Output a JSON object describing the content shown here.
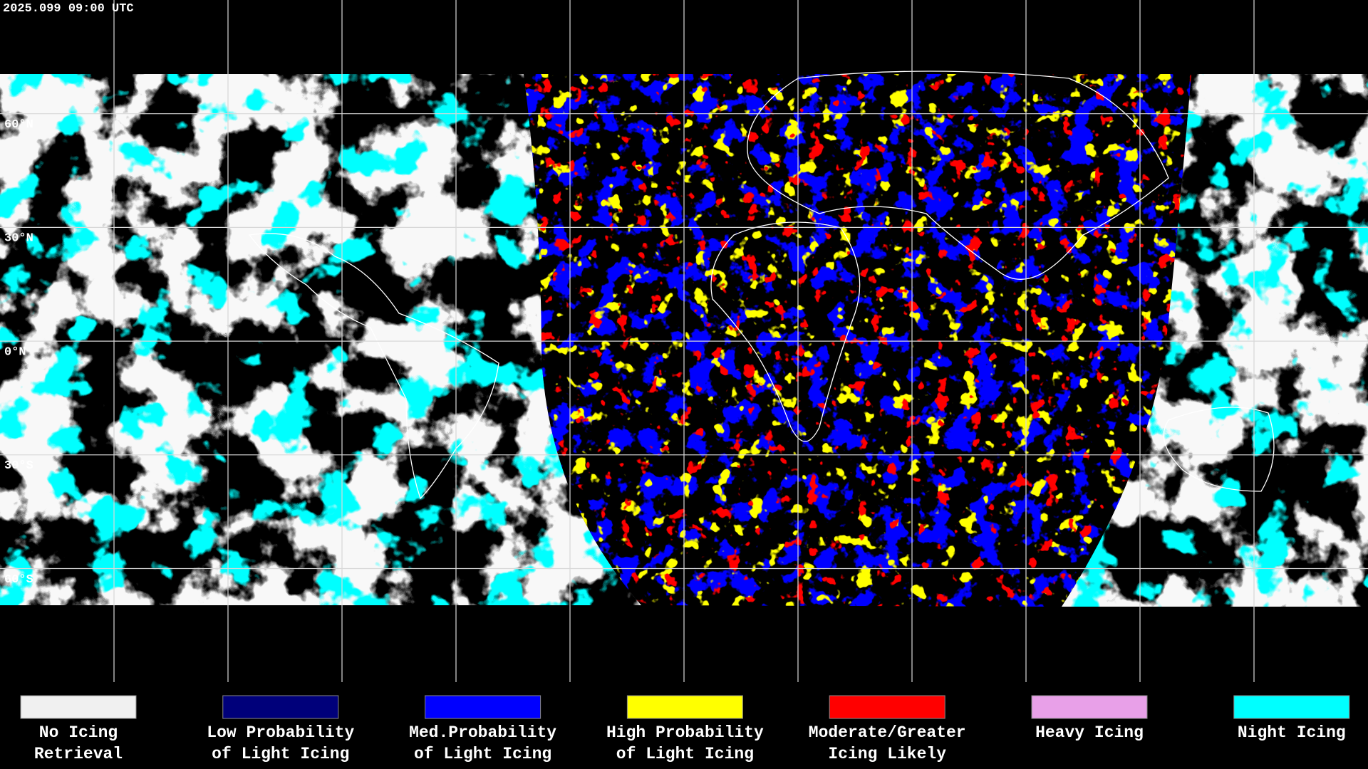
{
  "header": {
    "timestamp": "2025.099 09:00 UTC"
  },
  "latitude_labels": [
    "60°N",
    "30°N",
    "0°N",
    "30°S",
    "60°S"
  ],
  "legend": [
    {
      "lines": [
        "No Icing",
        "Retrieval"
      ],
      "color": "#f0f0f0"
    },
    {
      "lines": [
        "Low Probability",
        "of Light Icing"
      ],
      "color": "#00007a"
    },
    {
      "lines": [
        "Med.Probability",
        "of Light Icing"
      ],
      "color": "#0000ff"
    },
    {
      "lines": [
        "High Probability",
        "of Light Icing"
      ],
      "color": "#ffff00"
    },
    {
      "lines": [
        "Moderate/Greater",
        "Icing Likely"
      ],
      "color": "#ff0000"
    },
    {
      "lines": [
        "Heavy Icing"
      ],
      "color": "#e8a0e8"
    },
    {
      "lines": [
        "Night Icing"
      ],
      "color": "#00ffff"
    }
  ]
}
